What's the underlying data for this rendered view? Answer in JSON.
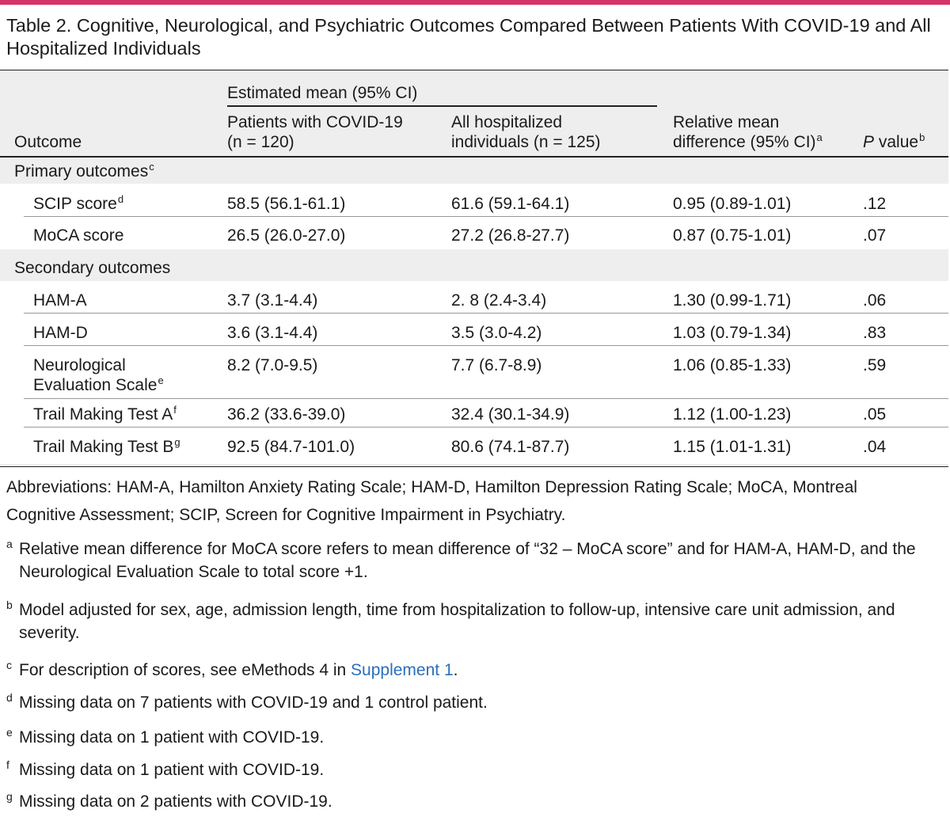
{
  "title": "Table 2. Cognitive, Neurological, and Psychiatric Outcomes Compared Between Patients With COVID-19 and All Hospitalized Individuals",
  "header": {
    "outcome": "Outcome",
    "group_label": "Estimated mean (95% CI)",
    "col_covid": "Patients with COVID-19 (n = 120)",
    "col_covid_l1": "Patients with COVID-19",
    "col_covid_l2": "(n = 120)",
    "col_hosp_l1": "All hospitalized",
    "col_hosp_l2": "individuals (n = 125)",
    "col_rmd_l1": "Relative mean",
    "col_rmd_l2": "difference (95% CI)",
    "col_rmd_sup": "a",
    "col_p_italic": "P",
    "col_p_rest": " value",
    "col_p_sup": "b"
  },
  "sections": {
    "primary": {
      "label": "Primary outcomes",
      "sup": "c"
    },
    "secondary": {
      "label": "Secondary outcomes",
      "sup": ""
    }
  },
  "rows": [
    {
      "name": "SCIP score",
      "sup": "d",
      "covid": "58.5 (56.1-61.1)",
      "hosp": "61.6 (59.1-64.1)",
      "rmd": "0.95 (0.89-1.01)",
      "p": ".12"
    },
    {
      "name": "MoCA score",
      "sup": "",
      "covid": "26.5 (26.0-27.0)",
      "hosp": "27.2 (26.8-27.7)",
      "rmd": "0.87 (0.75-1.01)",
      "p": ".07"
    },
    {
      "name": "HAM-A",
      "sup": "",
      "covid": "3.7 (3.1-4.4)",
      "hosp": "2. 8 (2.4-3.4)",
      "rmd": "1.30 (0.99-1.71)",
      "p": ".06"
    },
    {
      "name": "HAM-D",
      "sup": "",
      "covid": "3.6 (3.1-4.4)",
      "hosp": "3.5 (3.0-4.2)",
      "rmd": "1.03 (0.79-1.34)",
      "p": ".83"
    },
    {
      "name_l1": "Neurological",
      "name_l2": "Evaluation Scale",
      "sup": "e",
      "covid": "8.2 (7.0-9.5)",
      "hosp": "7.7 (6.7-8.9)",
      "rmd": "1.06 (0.85-1.33)",
      "p": ".59"
    },
    {
      "name": "Trail Making Test A",
      "sup": "f",
      "covid": "36.2 (33.6-39.0)",
      "hosp": "32.4 (30.1-34.9)",
      "rmd": "1.12 (1.00-1.23)",
      "p": ".05"
    },
    {
      "name": "Trail Making Test B",
      "sup": "g",
      "covid": "92.5 (84.7-101.0)",
      "hosp": "80.6 (74.1-87.7)",
      "rmd": "1.15 (1.01-1.31)",
      "p": ".04"
    }
  ],
  "abbreviations_l1": "Abbreviations: HAM-A, Hamilton Anxiety Rating Scale; HAM-D, Hamilton Depression Rating Scale; MoCA, Montreal",
  "abbreviations_l2": "Cognitive Assessment; SCIP, Screen for Cognitive Impairment in Psychiatry.",
  "footnotes": {
    "a": {
      "mark": "a",
      "l1": "Relative mean difference for MoCA score refers to mean difference of “32 – MoCA score” and for HAM-A, HAM-D, and the",
      "l2": "Neurological Evaluation Scale to total score +1."
    },
    "b": {
      "mark": "b",
      "l1": "Model adjusted for sex, age, admission length, time from hospitalization to follow-up, intensive care unit admission, and",
      "l2": "severity."
    },
    "c": {
      "mark": "c",
      "pre": "For description of scores, see eMethods 4 in ",
      "link": "Supplement 1",
      "post": "."
    },
    "d": {
      "mark": "d",
      "l1": "Missing data on 7 patients with COVID-19 and 1 control patient."
    },
    "e": {
      "mark": "e",
      "l1": "Missing data on 1 patient with COVID-19."
    },
    "f": {
      "mark": "f",
      "l1": "Missing data on 1 patient with COVID-19."
    },
    "g": {
      "mark": "g",
      "l1": "Missing data on 2 patients with COVID-19."
    }
  },
  "colors": {
    "accent_rule": "#d6336c",
    "table_bg": "#eeeeee",
    "link": "#2a6ebb"
  }
}
